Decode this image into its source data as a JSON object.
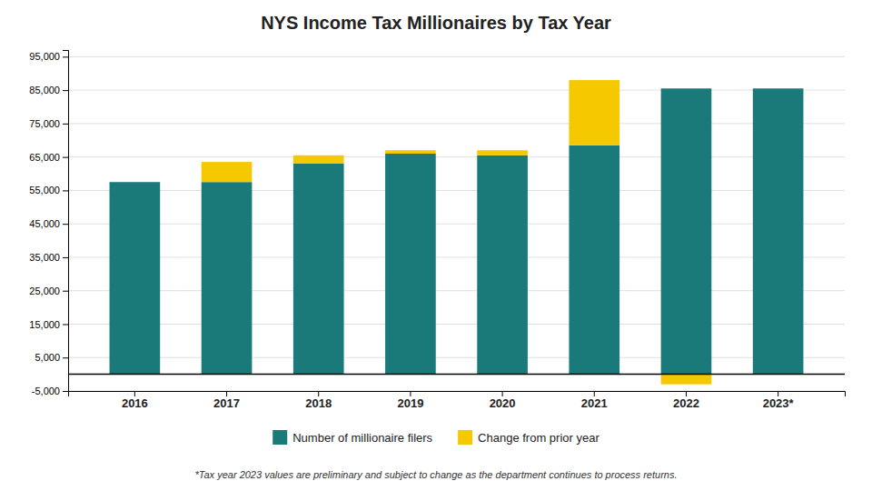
{
  "chart_data": {
    "type": "bar",
    "title": "NYS Income Tax Millionaires by Tax Year",
    "categories": [
      "2016",
      "2017",
      "2018",
      "2019",
      "2020",
      "2021",
      "2022",
      "2023*"
    ],
    "series": [
      {
        "name": "Number of millionaire filers",
        "color": "#1a7a7a",
        "values": [
          57500,
          57500,
          63000,
          66000,
          65500,
          68500,
          85500,
          85500
        ]
      },
      {
        "name": "Change from prior year",
        "color": "#f5c800",
        "values": [
          0,
          6000,
          2500,
          1000,
          1500,
          19500,
          -3000,
          0
        ]
      }
    ],
    "stacked": true,
    "ylim": [
      -5000,
      97000
    ],
    "yticks": [
      {
        "value": -5000,
        "label": "-5,000"
      },
      {
        "value": 5000,
        "label": "5,000"
      },
      {
        "value": 15000,
        "label": "15,000"
      },
      {
        "value": 25000,
        "label": "25,000"
      },
      {
        "value": 35000,
        "label": "35,000"
      },
      {
        "value": 45000,
        "label": "45,000"
      },
      {
        "value": 55000,
        "label": "55,000"
      },
      {
        "value": 65000,
        "label": "65,000"
      },
      {
        "value": 75000,
        "label": "75,000"
      },
      {
        "value": 85000,
        "label": "85,000"
      },
      {
        "value": 95000,
        "label": "95,000"
      }
    ],
    "grid": true,
    "legend": "bottom",
    "footnote": "*Tax year 2023 values are preliminary and subject to change as the department continues to process returns."
  }
}
